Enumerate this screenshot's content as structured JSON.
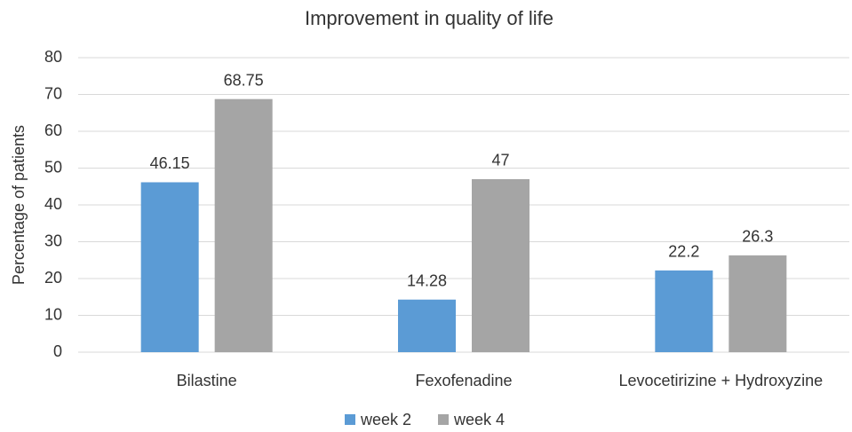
{
  "chart_data": {
    "type": "bar",
    "title": "Improvement in quality of life",
    "y_label": "Percentage of patients",
    "categories": [
      "Bilastine",
      "Fexofenadine",
      "Levocetirizine + Hydroxyzine"
    ],
    "series": [
      {
        "name": "week 2",
        "color": "#5b9bd5",
        "values": [
          46.15,
          14.28,
          22.2
        ]
      },
      {
        "name": "week 4",
        "color": "#a5a5a5",
        "values": [
          68.75,
          47,
          26.3
        ]
      }
    ],
    "ylim": [
      0,
      80
    ],
    "yticks": [
      0,
      10,
      20,
      30,
      40,
      50,
      60,
      70,
      80
    ],
    "grid": true,
    "legend": "bottom"
  }
}
